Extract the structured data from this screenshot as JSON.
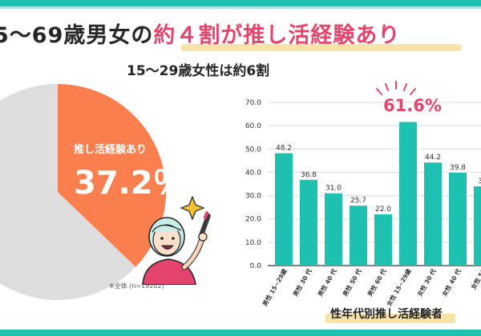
{
  "header": {
    "title_main": "5～69歳男女の",
    "title_highlight": "約４割が推し活経験あり",
    "subtitle": "15～29歳女性は約6割"
  },
  "pie": {
    "label": "推し活経験あり",
    "value_text": "37.2％",
    "note": "※全体 (n=19202)",
    "share": 0.372,
    "colors": {
      "yes": "#fa7f4e",
      "rest": "#dddddd"
    }
  },
  "callout": "61.6%",
  "chart_caption": "性年代別推し活経験者",
  "chart_data": {
    "type": "bar",
    "categories": [
      "男性 15~29歳",
      "男性 30 代",
      "男性 40 代",
      "男性 50 代",
      "男性 60 代",
      "女性 15~29歳",
      "女性 30 代",
      "女性 40 代",
      "女性 50 代"
    ],
    "category_labels_visible": [
      "男性 15~29歳",
      "男性 30 代",
      "男性 40 代",
      "男性 50 代",
      "男性 60 代",
      "女性 15~29歳",
      "女性 30 代",
      "女性 40 代",
      "女性 50"
    ],
    "values": [
      48.2,
      36.8,
      31.0,
      25.7,
      22.0,
      61.6,
      44.2,
      39.8,
      34
    ],
    "value_labels": [
      "48.2",
      "36.8",
      "31.0",
      "25.7",
      "22.0",
      "",
      "44.2",
      "39.8",
      "34"
    ],
    "ylim": [
      0,
      70
    ],
    "yticks": [
      "0.0",
      "10.0",
      "20.0",
      "30.0",
      "40.0",
      "50.0",
      "60.0",
      "70.0"
    ],
    "bar_color": "#1ec0b0",
    "grid": true
  }
}
